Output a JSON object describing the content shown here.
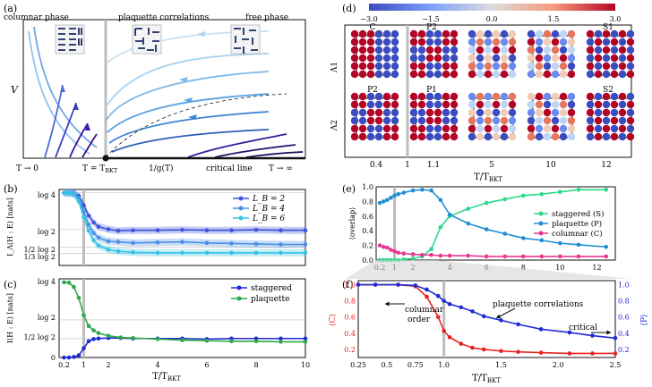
{
  "panel_labels": {
    "a": "(a)",
    "b": "(b)",
    "c": "(c)",
    "d": "(d)",
    "e": "(e)",
    "f": "(f)"
  },
  "colors": {
    "blue": "#1f2ad6",
    "red": "#e8231f",
    "green": "#2ea84a",
    "teal": "#2bd98a",
    "skyblue": "#1f8fd6",
    "pink": "#e6388f",
    "b_l2": "#3e56e0",
    "b_l4": "#4a8fe6",
    "b_l6": "#36c4e6",
    "gray_line": "#bdbdbd"
  },
  "panel_a": {
    "phase_columnar": "columnar phase",
    "phase_plaquette": "plaquette correlations",
    "phase_free": "free phase",
    "ylabel": "V",
    "x_left": "T → 0",
    "x_bkt": "T = T",
    "x_bkt_sub": "BKT",
    "x_mid": "1/g(T)",
    "x_critical": "critical line",
    "x_right": "T → ∞"
  },
  "panel_b": {
    "ylabel": "I_Λ(H : E) [nats]",
    "yticks": [
      "log 4",
      "log 2",
      "1/2 log 2",
      "1/3 log 2"
    ],
    "legend": [
      "L_B = 2",
      "L_B = 4",
      "L_B = 6"
    ]
  },
  "panel_c": {
    "ylabel": "I(H : E) [nats]",
    "yticks": [
      "log 4",
      "log 2",
      "1/2 log 2",
      "0"
    ],
    "legend": [
      "staggered",
      "plaquette"
    ],
    "xticks": [
      "0.2",
      "1",
      "2",
      "4",
      "6",
      "8",
      "10"
    ],
    "xlabel": "T/T",
    "xlabel_sub": "BKT"
  },
  "panel_d": {
    "colorbar_ticks": [
      "−3.0",
      "−1.5",
      "0.0",
      "1.5",
      "3.0"
    ],
    "row_labels": [
      "Λ1",
      "Λ2"
    ],
    "tile_labels_row1": [
      "C",
      "P2",
      "",
      "",
      "S1"
    ],
    "tile_labels_row2": [
      "P2",
      "P1",
      "",
      "",
      "S2"
    ],
    "xticks": [
      "0.4",
      "1",
      "1.1",
      "5",
      "10",
      "12"
    ],
    "xlabel": "T/T",
    "xlabel_sub": "BKT"
  },
  "panel_e": {
    "ylabel": "⟨overlap⟩",
    "yticks": [
      "0.0",
      "0.2",
      "0.4",
      "0.6",
      "0.8",
      "1.0"
    ],
    "xticks": [
      "0.2",
      "1",
      "2",
      "4",
      "6",
      "8",
      "10",
      "12"
    ],
    "legend": [
      "staggered (S)",
      "plaquette (P)",
      "columnar (C)"
    ]
  },
  "panel_f": {
    "ylabel_left": "⟨C⟩",
    "ylabel_right": "⟨P⟩",
    "yticks_left": [
      "0.2",
      "0.4",
      "0.6",
      "0.8",
      "1.0"
    ],
    "yticks_right": [
      "0.2",
      "0.4",
      "0.6",
      "0.8",
      "1.0"
    ],
    "xticks": [
      "0.25",
      "0.5",
      "0.75",
      "1.0",
      "1.5",
      "2.0",
      "2.5"
    ],
    "ann_columnar": "columnar",
    "ann_order": "order",
    "ann_plaquette": "plaquette correlations",
    "ann_critical": "critical",
    "xlabel": "T/T",
    "xlabel_sub": "BKT"
  },
  "chart_data": [
    {
      "id": "b",
      "type": "line",
      "x": [
        0.2,
        0.4,
        0.6,
        0.8,
        1.0,
        1.2,
        1.4,
        1.6,
        2.0,
        2.4,
        3.0,
        4.0,
        5.0,
        6.0,
        7.0,
        8.0,
        9.0,
        10.0
      ],
      "series": [
        {
          "name": "L_B = 2",
          "values": [
            1.386,
            1.386,
            1.38,
            1.33,
            1.15,
            0.95,
            0.82,
            0.74,
            0.69,
            0.66,
            0.67,
            0.67,
            0.68,
            0.67,
            0.67,
            0.68,
            0.67,
            0.67
          ]
        },
        {
          "name": "L_B = 4",
          "values": [
            1.386,
            1.386,
            1.37,
            1.28,
            1.02,
            0.78,
            0.62,
            0.53,
            0.46,
            0.45,
            0.43,
            0.44,
            0.45,
            0.43,
            0.42,
            0.41,
            0.4,
            0.4
          ]
        },
        {
          "name": "L_B = 6",
          "values": [
            1.386,
            1.386,
            1.36,
            1.22,
            0.92,
            0.66,
            0.48,
            0.38,
            0.3,
            0.27,
            0.25,
            0.24,
            0.24,
            0.24,
            0.24,
            0.24,
            0.24,
            0.24
          ]
        }
      ],
      "xlim": [
        0,
        10
      ],
      "ylim": [
        0,
        1.45
      ]
    },
    {
      "id": "c",
      "type": "line",
      "x": [
        0.2,
        0.4,
        0.6,
        0.8,
        1.0,
        1.2,
        1.4,
        1.6,
        2.0,
        2.5,
        3.0,
        4.0,
        5.0,
        6.0,
        7.0,
        8.0,
        9.0,
        10.0
      ],
      "series": [
        {
          "name": "staggered",
          "values": [
            0.0,
            0.0,
            0.01,
            0.04,
            0.17,
            0.3,
            0.34,
            0.35,
            0.36,
            0.36,
            0.35,
            0.35,
            0.35,
            0.34,
            0.35,
            0.35,
            0.35,
            0.35
          ]
        },
        {
          "name": "plaquette",
          "values": [
            1.386,
            1.38,
            1.3,
            1.1,
            0.78,
            0.58,
            0.5,
            0.45,
            0.4,
            0.37,
            0.36,
            0.34,
            0.32,
            0.31,
            0.3,
            0.3,
            0.29,
            0.29
          ]
        }
      ],
      "xlim": [
        0,
        10
      ],
      "ylim": [
        0,
        1.45
      ]
    },
    {
      "id": "e",
      "type": "line",
      "x": [
        0.2,
        0.4,
        0.6,
        0.8,
        1.0,
        1.2,
        1.5,
        2.0,
        2.5,
        3.0,
        3.5,
        4.0,
        5.0,
        6.0,
        7.0,
        8.0,
        9.0,
        10.0,
        11.0,
        12.5
      ],
      "series": [
        {
          "name": "staggered (S)",
          "values": [
            0.0,
            0.0,
            0.0,
            0.0,
            0.0,
            0.0,
            0.01,
            0.02,
            0.05,
            0.15,
            0.45,
            0.6,
            0.7,
            0.78,
            0.83,
            0.88,
            0.9,
            0.93,
            0.96,
            0.96
          ]
        },
        {
          "name": "plaquette (P)",
          "values": [
            0.78,
            0.8,
            0.82,
            0.85,
            0.88,
            0.9,
            0.92,
            0.95,
            0.96,
            0.95,
            0.82,
            0.62,
            0.5,
            0.42,
            0.36,
            0.3,
            0.27,
            0.23,
            0.21,
            0.18
          ]
        },
        {
          "name": "columnar (C)",
          "values": [
            0.2,
            0.18,
            0.17,
            0.14,
            0.12,
            0.1,
            0.09,
            0.08,
            0.07,
            0.07,
            0.06,
            0.06,
            0.06,
            0.05,
            0.05,
            0.05,
            0.05,
            0.05,
            0.05,
            0.05
          ]
        }
      ],
      "xlim": [
        0,
        13
      ],
      "ylim": [
        0,
        1.0
      ]
    },
    {
      "id": "f",
      "type": "line",
      "x": [
        0.25,
        0.4,
        0.6,
        0.75,
        0.85,
        0.95,
        1.0,
        1.05,
        1.15,
        1.25,
        1.35,
        1.5,
        1.65,
        1.85,
        2.1,
        2.3,
        2.5
      ],
      "series": [
        {
          "name": "⟨C⟩",
          "values": [
            1.0,
            1.0,
            1.0,
            0.98,
            0.85,
            0.6,
            0.43,
            0.35,
            0.27,
            0.22,
            0.2,
            0.18,
            0.17,
            0.16,
            0.15,
            0.15,
            0.15
          ]
        },
        {
          "name": "⟨P⟩",
          "values": [
            1.0,
            1.0,
            1.0,
            0.99,
            0.94,
            0.86,
            0.8,
            0.76,
            0.72,
            0.67,
            0.61,
            0.56,
            0.51,
            0.45,
            0.41,
            0.37,
            0.34
          ]
        }
      ],
      "xlim": [
        0.25,
        2.5
      ],
      "ylim": [
        0.1,
        1.05
      ]
    }
  ]
}
